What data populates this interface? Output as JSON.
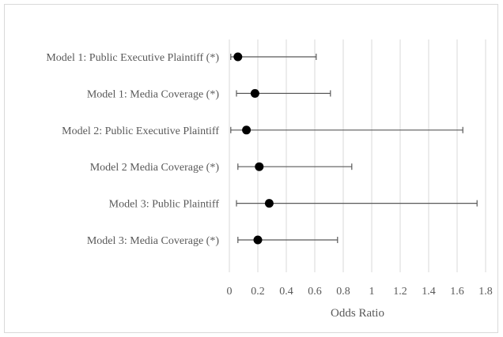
{
  "chart_data": {
    "type": "scatter",
    "subtype": "forest-plot",
    "title": "",
    "xlabel": "Odds Ratio",
    "ylabel": "",
    "xlim": [
      0,
      1.8
    ],
    "x_ticks": [
      "0",
      "0.2",
      "0.4",
      "0.6",
      "0.8",
      "1",
      "1.2",
      "1.4",
      "1.6",
      "1.8"
    ],
    "grid": "vertical",
    "legend": "none",
    "marker_color": "#000000",
    "errorbar_color": "#595959",
    "categories": [
      "Model 1: Public Executive Plaintiff (*)",
      "Model 1: Media Coverage (*)",
      "Model 2: Public Executive Plaintiff",
      "Model 2 Media Coverage (*)",
      "Model 3: Public Plaintiff",
      "Model 3: Media Coverage (*)"
    ],
    "points": [
      {
        "estimate": 0.06,
        "lower": 0.01,
        "upper": 0.61
      },
      {
        "estimate": 0.18,
        "lower": 0.05,
        "upper": 0.71
      },
      {
        "estimate": 0.12,
        "lower": 0.01,
        "upper": 1.64
      },
      {
        "estimate": 0.21,
        "lower": 0.06,
        "upper": 0.86
      },
      {
        "estimate": 0.28,
        "lower": 0.05,
        "upper": 1.74
      },
      {
        "estimate": 0.2,
        "lower": 0.06,
        "upper": 0.76
      }
    ]
  }
}
